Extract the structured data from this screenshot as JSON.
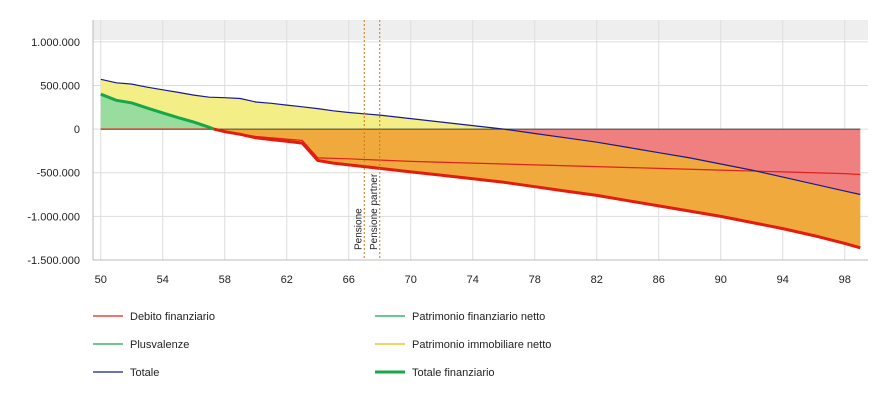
{
  "chart_data": {
    "type": "area",
    "x_ticks": [
      50,
      54,
      58,
      62,
      66,
      70,
      74,
      78,
      82,
      86,
      90,
      94,
      98
    ],
    "y_ticks": [
      1000000,
      500000,
      0,
      -500000,
      -1000000,
      -1500000
    ],
    "y_tick_labels": [
      "1.000.000",
      "500.000",
      "0",
      "-500.000",
      "-1.000.000",
      "-1.500.000"
    ],
    "xlim": [
      49.5,
      99.5
    ],
    "ylim": [
      -1500000,
      1250000
    ],
    "grid": true,
    "vertical_markers": [
      {
        "label": "Pensione",
        "x": 67
      },
      {
        "label": "Pensione partner",
        "x": 68
      }
    ],
    "colors": {
      "debito_fill": "#f08080",
      "debito_line": "#e0201c",
      "patrimonio_fin_fill": "#f0a93d",
      "plusvalenze_fill": "#98dc9e",
      "plusvalenze_line": "#14a84a",
      "immobiliare_fill": "#f3ee86",
      "totale_line": "#1a1a8a",
      "totale_fin_line": "#e41c10",
      "marker": "#c97a10",
      "topband": "#eeeeee",
      "grid": "#dddddd"
    },
    "series": [
      {
        "name": "Totale",
        "x": [
          50,
          51,
          52,
          53,
          54,
          55,
          56,
          57,
          58,
          59,
          60,
          61,
          62,
          63,
          64,
          65,
          66,
          67,
          68,
          70,
          72,
          74,
          76,
          78,
          80,
          82,
          84,
          86,
          88,
          90,
          92,
          94,
          96,
          98,
          99
        ],
        "values": [
          570000,
          530000,
          515000,
          480000,
          450000,
          420000,
          390000,
          365000,
          360000,
          350000,
          310000,
          295000,
          275000,
          255000,
          235000,
          210000,
          190000,
          175000,
          160000,
          120000,
          80000,
          40000,
          0,
          -50000,
          -100000,
          -150000,
          -210000,
          -270000,
          -330000,
          -400000,
          -470000,
          -550000,
          -630000,
          -710000,
          -750000
        ]
      },
      {
        "name": "Plusvalenze",
        "x": [
          50,
          51,
          52,
          53,
          54,
          55,
          56,
          57,
          57.3
        ],
        "values": [
          400000,
          330000,
          300000,
          240000,
          185000,
          130000,
          80000,
          20000,
          0
        ]
      },
      {
        "name": "Totale finanziario",
        "x": [
          57.3,
          58,
          59,
          60,
          61,
          62,
          63,
          64,
          65,
          66,
          67,
          68,
          70,
          72,
          74,
          76,
          78,
          80,
          82,
          84,
          86,
          88,
          90,
          92,
          94,
          96,
          98,
          99
        ],
        "values": [
          0,
          -30000,
          -60000,
          -100000,
          -120000,
          -140000,
          -160000,
          -360000,
          -390000,
          -410000,
          -430000,
          -450000,
          -490000,
          -530000,
          -570000,
          -610000,
          -660000,
          -710000,
          -760000,
          -820000,
          -880000,
          -940000,
          -1000000,
          -1070000,
          -1140000,
          -1220000,
          -1310000,
          -1360000
        ]
      },
      {
        "name": "Debito finanziario",
        "x": [
          50,
          55,
          57.3,
          58,
          60,
          62,
          63,
          64,
          66,
          68,
          70,
          74,
          78,
          82,
          86,
          90,
          94,
          98,
          99
        ],
        "values": [
          0,
          0,
          0,
          -25000,
          -85000,
          -115000,
          -130000,
          -330000,
          -340000,
          -355000,
          -370000,
          -390000,
          -410000,
          -430000,
          -450000,
          -470000,
          -490000,
          -510000,
          -520000
        ]
      }
    ],
    "legend": [
      {
        "name": "Debito finanziario",
        "color": "#e0201c",
        "bold": false
      },
      {
        "name": "Patrimonio finanziario netto",
        "color": "#14a84a",
        "bold": false
      },
      {
        "name": "Plusvalenze",
        "color": "#14a84a",
        "bold": false
      },
      {
        "name": "Patrimonio immobiliare netto",
        "color": "#e8c000",
        "bold": false
      },
      {
        "name": "Totale",
        "color": "#1a1a8a",
        "bold": false
      },
      {
        "name": "Totale finanziario",
        "color": "#14a84a",
        "bold": true
      }
    ]
  }
}
